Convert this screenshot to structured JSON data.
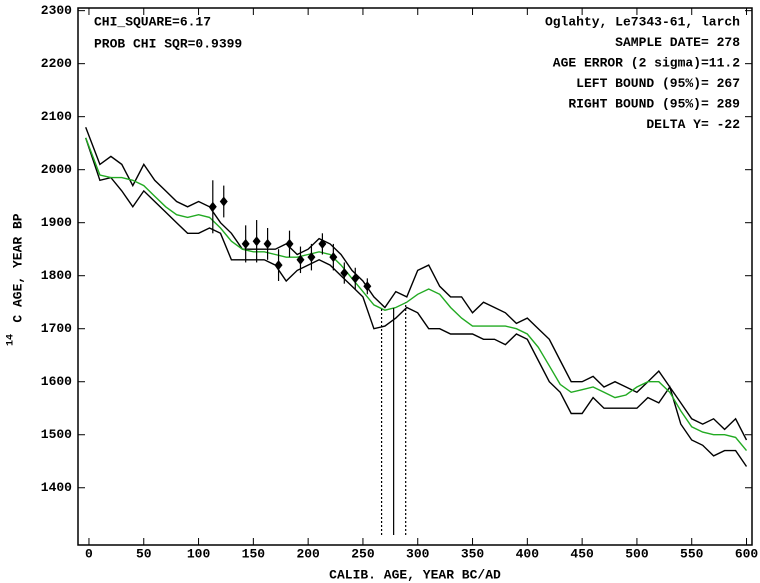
{
  "chart_data": {
    "type": "line",
    "xlabel": "CALIB. AGE, YEAR BC/AD",
    "ylabel_sup": "14",
    "ylabel": "C AGE, YEAR BP",
    "annotations_left": [
      "CHI_SQUARE=6.17",
      "PROB CHI SQR=0.9399"
    ],
    "annotations_right": [
      "Oglahty, Le7343-61, larch",
      "SAMPLE DATE= 278",
      "AGE ERROR (2 sigma)=11.2",
      "LEFT BOUND (95%)= 267",
      "RIGHT BOUND (95%)= 289",
      "DELTA Y= -22"
    ],
    "xlim": [
      -10,
      605
    ],
    "ylim": [
      1292,
      2305
    ],
    "xticks": [
      0,
      50,
      100,
      150,
      200,
      250,
      300,
      350,
      400,
      450,
      500,
      550,
      600
    ],
    "yticks": [
      1400,
      1500,
      1600,
      1700,
      1800,
      1900,
      2000,
      2100,
      2200,
      2300
    ],
    "x": [
      -3,
      10,
      20,
      30,
      40,
      50,
      60,
      70,
      80,
      90,
      100,
      110,
      120,
      130,
      140,
      150,
      160,
      170,
      180,
      190,
      200,
      210,
      220,
      230,
      240,
      250,
      260,
      270,
      280,
      290,
      300,
      310,
      320,
      330,
      340,
      350,
      360,
      370,
      380,
      390,
      400,
      410,
      420,
      430,
      440,
      450,
      460,
      470,
      480,
      490,
      500,
      510,
      520,
      530,
      540,
      550,
      560,
      570,
      580,
      590,
      600
    ],
    "series": [
      {
        "color": "#000000",
        "values": [
          2080,
          2010,
          2025,
          2010,
          1970,
          2010,
          1980,
          1960,
          1940,
          1930,
          1940,
          1930,
          1900,
          1880,
          1850,
          1850,
          1850,
          1850,
          1860,
          1840,
          1850,
          1870,
          1860,
          1840,
          1810,
          1790,
          1760,
          1740,
          1770,
          1760,
          1810,
          1820,
          1780,
          1760,
          1760,
          1730,
          1750,
          1740,
          1730,
          1710,
          1720,
          1700,
          1680,
          1640,
          1600,
          1600,
          1610,
          1590,
          1600,
          1590,
          1580,
          1600,
          1620,
          1590,
          1560,
          1530,
          1520,
          1530,
          1510,
          1530,
          1490
        ]
      },
      {
        "color": "#000000",
        "values": [
          2060,
          1980,
          1985,
          1960,
          1930,
          1960,
          1940,
          1920,
          1900,
          1880,
          1880,
          1890,
          1880,
          1830,
          1830,
          1830,
          1830,
          1820,
          1790,
          1810,
          1820,
          1830,
          1820,
          1800,
          1780,
          1760,
          1700,
          1705,
          1720,
          1740,
          1730,
          1700,
          1700,
          1690,
          1690,
          1690,
          1680,
          1680,
          1670,
          1690,
          1680,
          1640,
          1600,
          1580,
          1540,
          1540,
          1570,
          1550,
          1550,
          1550,
          1550,
          1570,
          1560,
          1590,
          1520,
          1490,
          1480,
          1460,
          1470,
          1470,
          1440
        ]
      },
      {
        "color": "#22aa22",
        "values": [
          2060,
          1990,
          1985,
          1985,
          1980,
          1970,
          1950,
          1930,
          1915,
          1910,
          1915,
          1910,
          1890,
          1865,
          1850,
          1845,
          1845,
          1840,
          1835,
          1835,
          1840,
          1845,
          1840,
          1820,
          1795,
          1770,
          1745,
          1735,
          1740,
          1750,
          1765,
          1775,
          1765,
          1740,
          1720,
          1705,
          1705,
          1705,
          1705,
          1700,
          1690,
          1665,
          1630,
          1595,
          1580,
          1585,
          1590,
          1580,
          1570,
          1575,
          1590,
          1600,
          1600,
          1580,
          1545,
          1515,
          1505,
          1500,
          1500,
          1495,
          1470
        ]
      }
    ],
    "points": {
      "color": "#000000",
      "x": [
        113,
        123,
        143,
        153,
        163,
        173,
        183,
        193,
        203,
        213,
        223,
        233,
        243,
        254
      ],
      "values": [
        1930,
        1940,
        1860,
        1865,
        1860,
        1820,
        1860,
        1830,
        1835,
        1860,
        1835,
        1805,
        1795,
        1780
      ],
      "errors": [
        50,
        30,
        35,
        40,
        30,
        30,
        25,
        25,
        25,
        20,
        25,
        20,
        20,
        15
      ]
    },
    "bounds": [
      {
        "value": 267,
        "dash": "dotted"
      },
      {
        "value": 278,
        "dash": "solid"
      },
      {
        "value": 289,
        "dash": "dotted"
      }
    ]
  }
}
